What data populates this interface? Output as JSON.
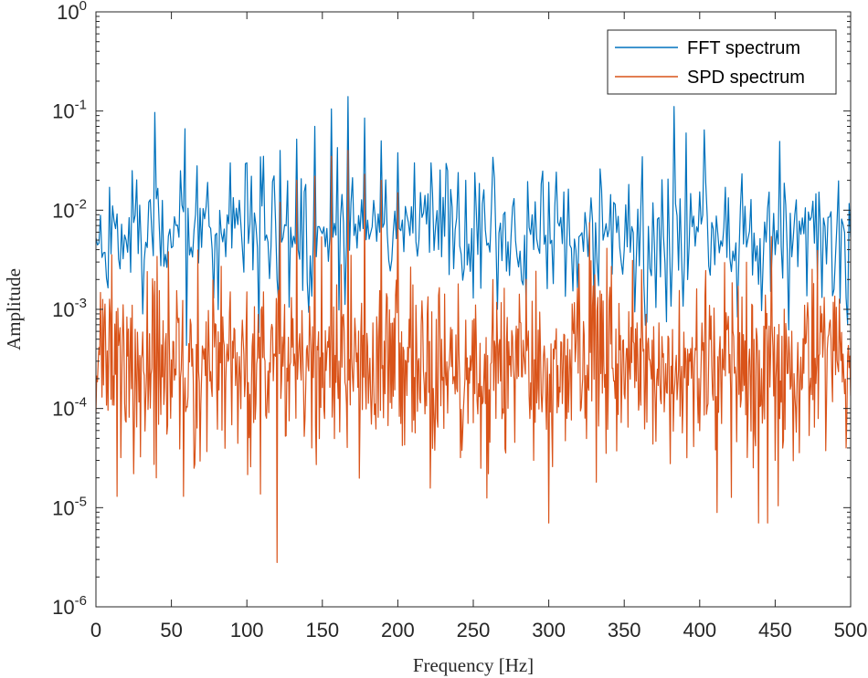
{
  "chart_data": {
    "type": "line",
    "title": "",
    "xlabel": "Frequency [Hz]",
    "ylabel": "Amplitude",
    "xlim": [
      0,
      500
    ],
    "ylim": [
      1e-06,
      1
    ],
    "yscale": "log",
    "grid": false,
    "legend_location": "top-right",
    "x_ticks": [
      0,
      50,
      100,
      150,
      200,
      250,
      300,
      350,
      400,
      450,
      500
    ],
    "y_ticks": [
      {
        "value": 1e-06,
        "base": "10",
        "exp": "-6"
      },
      {
        "value": 1e-05,
        "base": "10",
        "exp": "-5"
      },
      {
        "value": 0.0001,
        "base": "10",
        "exp": "-4"
      },
      {
        "value": 0.001,
        "base": "10",
        "exp": "-3"
      },
      {
        "value": 0.01,
        "base": "10",
        "exp": "-2"
      },
      {
        "value": 0.1,
        "base": "10",
        "exp": "-1"
      },
      {
        "value": 1,
        "base": "10",
        "exp": "0"
      }
    ],
    "series": [
      {
        "name": "FFT spectrum",
        "color": "#0072BD",
        "noise_level": 0.0065,
        "noise_spread": 0.33,
        "num_points": 500,
        "seed": 11,
        "peaks": [
          {
            "x": 167,
            "y": 0.14
          },
          {
            "x": 156,
            "y": 0.105
          },
          {
            "x": 178,
            "y": 0.085
          },
          {
            "x": 145,
            "y": 0.07
          },
          {
            "x": 189,
            "y": 0.05
          },
          {
            "x": 133,
            "y": 0.052
          },
          {
            "x": 200,
            "y": 0.038
          },
          {
            "x": 122,
            "y": 0.04
          },
          {
            "x": 111,
            "y": 0.035
          },
          {
            "x": 211,
            "y": 0.03
          },
          {
            "x": 100,
            "y": 0.03
          },
          {
            "x": 222,
            "y": 0.03
          },
          {
            "x": 89,
            "y": 0.03
          },
          {
            "x": 233,
            "y": 0.025
          },
          {
            "x": 78,
            "y": 0.03
          },
          {
            "x": 245,
            "y": 0.02
          },
          {
            "x": 67,
            "y": 0.028
          },
          {
            "x": 56,
            "y": 0.025
          }
        ],
        "dips": [
          {
            "x": 31,
            "y": 0.0009
          },
          {
            "x": 78,
            "y": 0.0013
          },
          {
            "x": 120,
            "y": 0.002
          },
          {
            "x": 250,
            "y": 0.0013
          },
          {
            "x": 285,
            "y": 0.0011
          },
          {
            "x": 330,
            "y": 0.0011
          },
          {
            "x": 365,
            "y": 0.00075
          },
          {
            "x": 378,
            "y": 0.00075
          },
          {
            "x": 497,
            "y": 0.0013
          }
        ]
      },
      {
        "name": "SPD spectrum",
        "color": "#D95319",
        "noise_level": 0.00028,
        "noise_spread": 0.45,
        "num_points": 1000,
        "seed": 23,
        "peaks": [
          {
            "x": 167,
            "y": 0.04
          },
          {
            "x": 156,
            "y": 0.035
          },
          {
            "x": 178,
            "y": 0.023
          },
          {
            "x": 145,
            "y": 0.022
          },
          {
            "x": 189,
            "y": 0.02
          },
          {
            "x": 133,
            "y": 0.02
          },
          {
            "x": 200,
            "y": 0.015
          },
          {
            "x": 122,
            "y": 0.012
          },
          {
            "x": 111,
            "y": 0.0015
          },
          {
            "x": 100,
            "y": 0.0015
          },
          {
            "x": 89,
            "y": 0.0015
          },
          {
            "x": 78,
            "y": 0.001
          }
        ],
        "dips": [
          {
            "x": 120,
            "y": 2.8e-06
          },
          {
            "x": 300,
            "y": 7e-06
          },
          {
            "x": 439,
            "y": 7e-06
          },
          {
            "x": 445,
            "y": 7e-06
          },
          {
            "x": 58,
            "y": 1.3e-05
          },
          {
            "x": 14,
            "y": 1.3e-05
          },
          {
            "x": 25,
            "y": 2.2e-05
          },
          {
            "x": 40,
            "y": 2e-05
          },
          {
            "x": 65,
            "y": 2.5e-05
          },
          {
            "x": 255,
            "y": 2.5e-05
          },
          {
            "x": 290,
            "y": 3e-05
          },
          {
            "x": 260,
            "y": 2.2e-05
          },
          {
            "x": 450,
            "y": 3e-05
          },
          {
            "x": 497,
            "y": 4e-05
          }
        ]
      }
    ]
  }
}
